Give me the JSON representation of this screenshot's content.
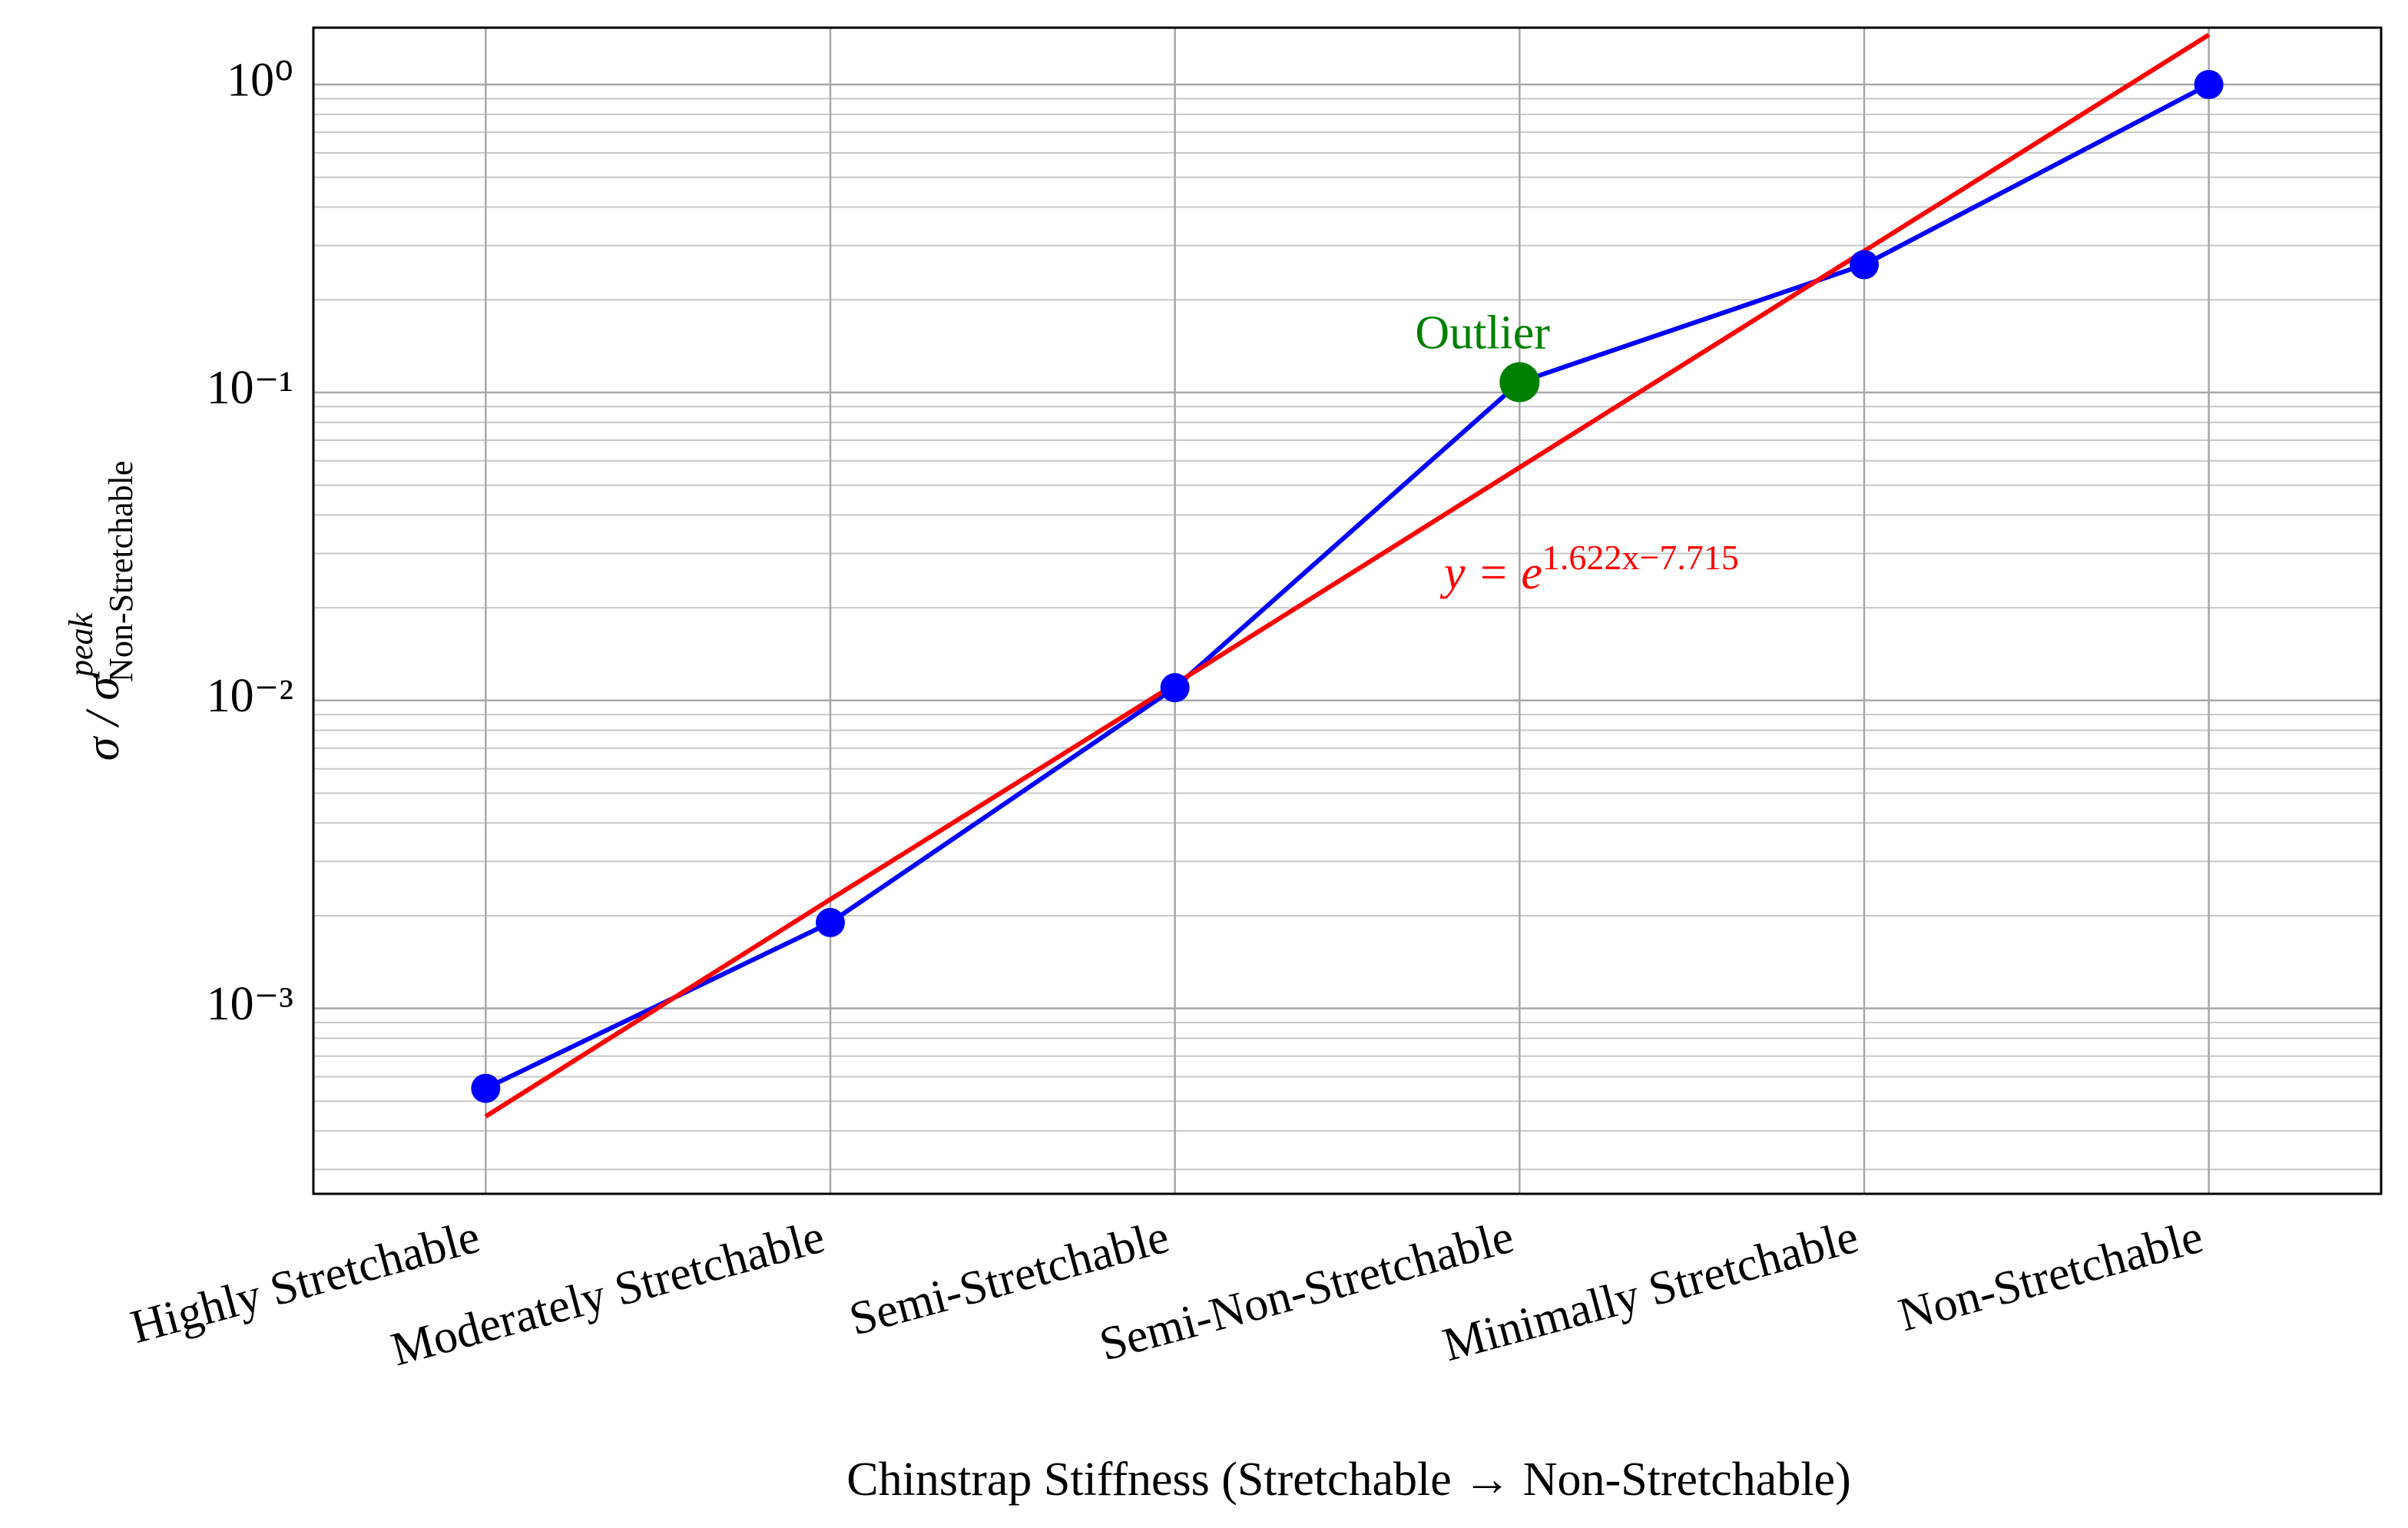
{
  "chart_data": {
    "type": "line",
    "y_label": {
      "text": "σ / σ",
      "superscript": "peak",
      "subscript": "Non-Stretchable"
    },
    "x_label": "Chinstrap Stiffness (Stretchable → Non-Stretchable)",
    "categories": [
      "Highly Stretchable",
      "Moderately Stretchable",
      "Semi-Stretchable",
      "Semi-Non-Stretchable",
      "Minimally Stretchable",
      "Non-Stretchable"
    ],
    "series": [
      {
        "color": "#0000ff",
        "values": [
          0.00055,
          0.0019,
          0.011,
          0.108,
          0.26,
          1.0
        ],
        "markers": true
      },
      {
        "color": "#ff0000",
        "values": [
          0.000446,
          0.00226,
          0.0113,
          0.0571,
          0.288,
          1.45
        ],
        "markers": false
      }
    ],
    "highlight": {
      "series": 0,
      "index": 3,
      "color": "#008000",
      "label": "Outlier"
    },
    "fit_label": {
      "base": "y = e",
      "exponent": "1.622x−7.715",
      "color": "#ff0000"
    },
    "log_y": true,
    "grid": true,
    "ylim": [
      0.00025,
      1.53
    ],
    "yticks": [
      {
        "value": 0.001,
        "label": "10⁻³"
      },
      {
        "value": 0.01,
        "label": "10⁻²"
      },
      {
        "value": 0.1,
        "label": "10⁻¹"
      },
      {
        "value": 1,
        "label": "10⁰"
      }
    ],
    "minor_yticks": [
      0.0003,
      0.0004,
      0.0005,
      0.0006,
      0.0007,
      0.0008,
      0.0009,
      0.002,
      0.003,
      0.004,
      0.005,
      0.006,
      0.007,
      0.008,
      0.009,
      0.02,
      0.03,
      0.04,
      0.05,
      0.06,
      0.07,
      0.08,
      0.09,
      0.2,
      0.3,
      0.4,
      0.5,
      0.6,
      0.7,
      0.8,
      0.9
    ]
  }
}
